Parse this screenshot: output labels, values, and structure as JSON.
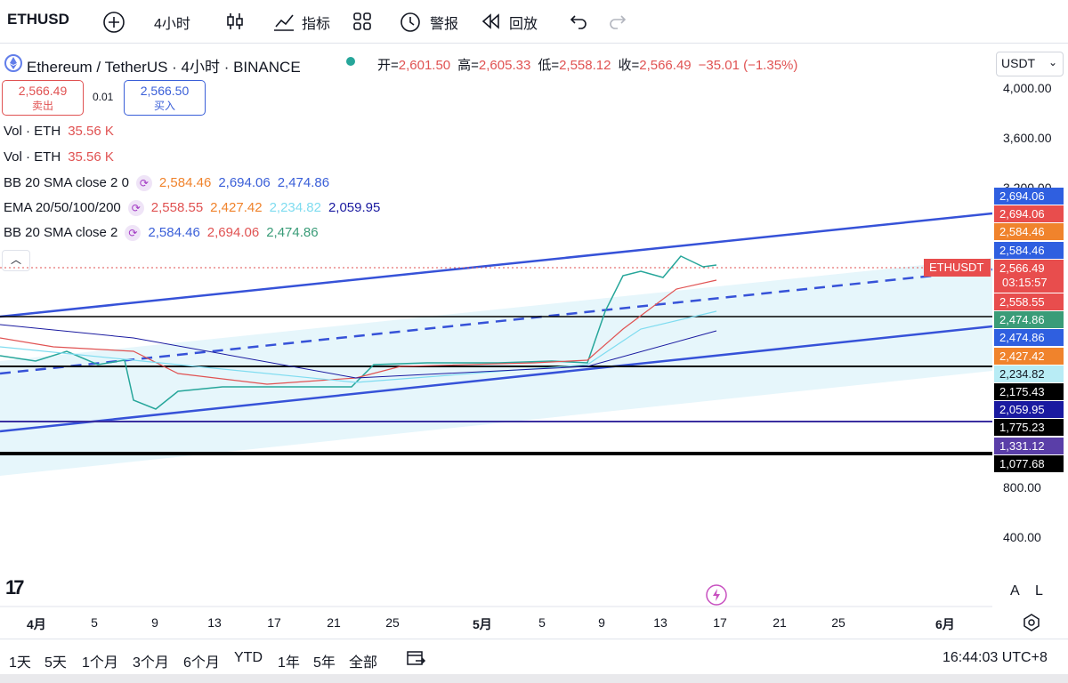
{
  "toolbar": {
    "symbol": "ETHUSD",
    "interval": "4小时",
    "items": [
      "指标",
      "警报",
      "回放"
    ]
  },
  "header": {
    "title": "Ethereum / TetherUS · 4小时 · BINANCE",
    "ohlc": [
      {
        "label": "开=",
        "value": "2,601.50"
      },
      {
        "label": "高=",
        "value": "2,605.33"
      },
      {
        "label": "低=",
        "value": "2,558.12"
      },
      {
        "label": "收=",
        "value": "2,566.49"
      }
    ],
    "change": "−35.01 (−1.35%)"
  },
  "trade": {
    "sell_price": "2,566.49",
    "sell_label": "卖出",
    "spread": "0.01",
    "buy_price": "2,566.50",
    "buy_label": "买入"
  },
  "indicators": [
    {
      "name": "Vol · ETH",
      "values": [
        {
          "text": "35.56 K",
          "color": "#e05252"
        }
      ]
    },
    {
      "name": "Vol · ETH",
      "values": [
        {
          "text": "35.56 K",
          "color": "#e05252"
        }
      ]
    },
    {
      "name": "BB 20 SMA close 2 0",
      "values": [
        {
          "text": "2,584.46",
          "color": "#f0832c"
        },
        {
          "text": "2,694.06",
          "color": "#3a5fd8"
        },
        {
          "text": "2,474.86",
          "color": "#3a5fd8"
        }
      ]
    },
    {
      "name": "EMA 20/50/100/200",
      "values": [
        {
          "text": "2,558.55",
          "color": "#e05252"
        },
        {
          "text": "2,427.42",
          "color": "#f0832c"
        },
        {
          "text": "2,234.82",
          "color": "#7fdcf0"
        },
        {
          "text": "2,059.95",
          "color": "#1a1aa0"
        }
      ]
    },
    {
      "name": "BB 20 SMA close 2",
      "values": [
        {
          "text": "2,584.46",
          "color": "#3a5fd8"
        },
        {
          "text": "2,694.06",
          "color": "#e05252"
        },
        {
          "text": "2,474.86",
          "color": "#3a9c78"
        }
      ]
    }
  ],
  "currency": "USDT",
  "price_axis": [
    "4,000.00",
    "3,600.00",
    "3,200.00",
    "800.00",
    "400.00"
  ],
  "symbol_tag": "ETHUSDT",
  "countdown": "03:15:57",
  "price_badges": [
    {
      "text": "2,694.06",
      "color": "#2f5fe0"
    },
    {
      "text": "2,694.06",
      "color": "#e84d4d"
    },
    {
      "text": "2,584.46",
      "color": "#f0832c"
    },
    {
      "text": "2,584.46",
      "color": "#2f5fe0"
    },
    {
      "text": "2,566.49",
      "color": "#e84d4d"
    },
    {
      "text": "2,558.55",
      "color": "#e84d4d"
    },
    {
      "text": "2,474.86",
      "color": "#3a9c78"
    },
    {
      "text": "2,474.86",
      "color": "#2f5fe0"
    },
    {
      "text": "2,427.42",
      "color": "#f0832c"
    },
    {
      "text": "2,234.82",
      "color": "#b8ecf5"
    },
    {
      "text": "2,175.43",
      "color": "#000000"
    },
    {
      "text": "2,059.95",
      "color": "#1a1aa0"
    },
    {
      "text": "1,775.23",
      "color": "#000000"
    },
    {
      "text": "1,331.12",
      "color": "#5a3ea8"
    },
    {
      "text": "1,077.68",
      "color": "#000000"
    }
  ],
  "time_axis": [
    "4月",
    "5",
    "9",
    "13",
    "17",
    "21",
    "25",
    "5月",
    "5",
    "9",
    "13",
    "17",
    "21",
    "25",
    "6月"
  ],
  "ranges": [
    "1天",
    "5天",
    "1个月",
    "3个月",
    "6个月",
    "YTD",
    "1年",
    "5年",
    "全部"
  ],
  "clock": "16:44:03 UTC+8"
}
